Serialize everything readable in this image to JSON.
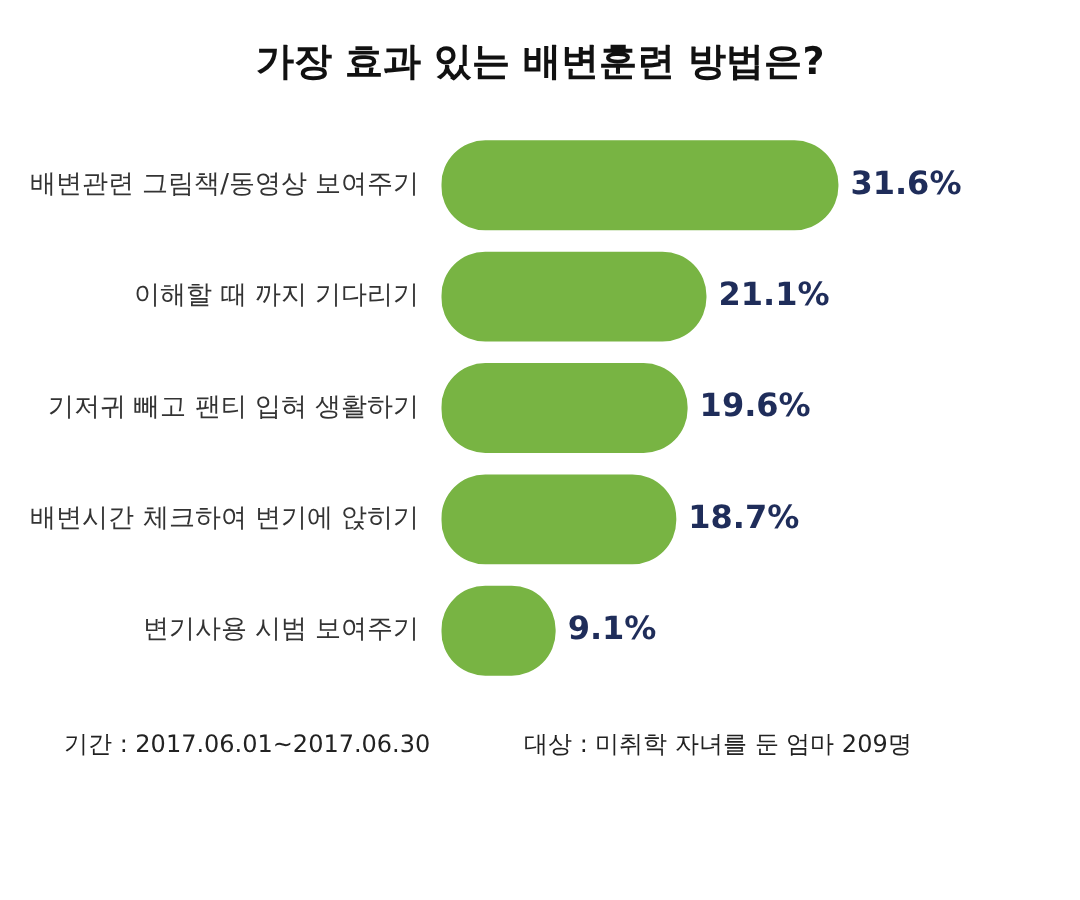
{
  "chart_data": {
    "type": "bar",
    "orientation": "horizontal",
    "title": "가장 효과 있는 배변훈련 방법은?",
    "categories": [
      "배변관련 그림책/동영상 보여주기",
      "이해할 때 까지 기다리기",
      "기저귀 빼고 팬티 입혀 생활하기",
      "배변시간 체크하여 변기에 앉히기",
      "변기사용 시범 보여주기"
    ],
    "values": [
      31.6,
      21.1,
      19.6,
      18.7,
      9.1
    ],
    "color": "#78b443",
    "value_labels": [
      "31.6%",
      "21.1%",
      "19.6%",
      "18.7%",
      "9.1%"
    ],
    "annotations": [
      "기간 : 2017.06.01~2017.06.30",
      "대상 : 미취학 자녀를 둔 엄마 209명"
    ]
  }
}
